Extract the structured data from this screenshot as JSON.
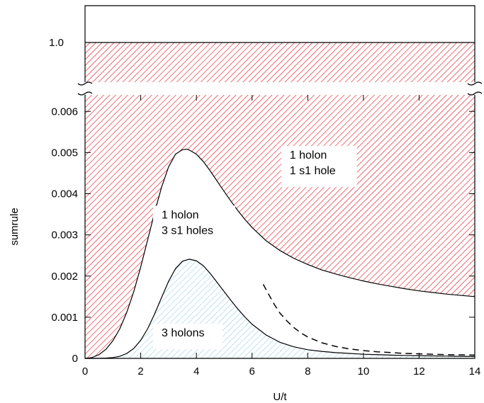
{
  "chart_data": {
    "type": "area",
    "title": "",
    "xlabel": "U/t",
    "ylabel": "sumrule",
    "xlim": [
      0,
      14
    ],
    "ylim": [
      0,
      0.0064
    ],
    "y_axis_break": {
      "lower_max": 0.0064,
      "upper_tick": 1.0,
      "upper_tick_label": "1.0"
    },
    "x_ticks": [
      0,
      2,
      4,
      6,
      8,
      10,
      12,
      14
    ],
    "x_tick_labels": [
      "0",
      "2",
      "4",
      "6",
      "8",
      "10",
      "12",
      "14"
    ],
    "y_ticks": [
      0,
      0.001,
      0.002,
      0.003,
      0.004,
      0.005,
      0.006
    ],
    "y_tick_labels": [
      "0",
      "0.001",
      "0.002",
      "0.003",
      "0.004",
      "0.005",
      "0.006"
    ],
    "grid": false,
    "fill_colors": {
      "one_holon_one_s1_hole": "#e8202a",
      "three_holons": "#9fd4e6"
    },
    "series": [
      {
        "x": [
          0,
          0.25,
          0.5,
          0.75,
          1,
          1.25,
          1.5,
          1.75,
          2,
          2.25,
          2.5,
          2.75,
          3,
          3.25,
          3.5,
          3.65,
          3.75,
          4,
          4.25,
          4.5,
          4.75,
          5,
          5.25,
          5.5,
          5.75,
          6,
          6.5,
          7,
          7.5,
          8,
          8.5,
          9,
          9.5,
          10,
          10.5,
          11,
          11.5,
          12,
          12.5,
          13,
          13.5,
          14
        ],
        "values": [
          0,
          2e-05,
          9e-05,
          0.00022,
          0.00043,
          0.00072,
          0.00112,
          0.00162,
          0.00222,
          0.00288,
          0.00355,
          0.00416,
          0.00465,
          0.00496,
          0.00507,
          0.00508,
          0.00506,
          0.00496,
          0.00478,
          0.00455,
          0.0043,
          0.00405,
          0.00381,
          0.00358,
          0.00337,
          0.00318,
          0.00286,
          0.00262,
          0.00243,
          0.00228,
          0.00215,
          0.00205,
          0.00196,
          0.00188,
          0.00181,
          0.00175,
          0.00169,
          0.00164,
          0.0016,
          0.00156,
          0.00153,
          0.0015
        ]
      },
      {
        "x": [
          0,
          0.25,
          0.5,
          0.75,
          1,
          1.25,
          1.5,
          1.75,
          2,
          2.25,
          2.5,
          2.75,
          3,
          3.25,
          3.5,
          3.75,
          4,
          4.25,
          4.5,
          4.75,
          5,
          5.25,
          5.5,
          5.75,
          6,
          6.5,
          7,
          7.5,
          8,
          8.5,
          9,
          9.5,
          10,
          10.5,
          11,
          11.5,
          12,
          12.5,
          13,
          13.5,
          14
        ],
        "values": [
          0,
          0,
          2e-06,
          6e-06,
          2e-05,
          5e-05,
          0.00012,
          0.00024,
          0.00044,
          0.00072,
          0.00108,
          0.00148,
          0.00187,
          0.00218,
          0.00236,
          0.00241,
          0.00237,
          0.00225,
          0.00206,
          0.00184,
          0.00162,
          0.0014,
          0.00119,
          0.001,
          0.00083,
          0.00057,
          0.00039,
          0.00028,
          0.00021,
          0.00017,
          0.00014,
          0.00012,
          0.0001,
          9e-05,
          8e-05,
          7e-05,
          6.5e-05,
          6e-05,
          5.5e-05,
          5e-05,
          4.5e-05
        ]
      },
      {
        "x": [
          6.4,
          6.6,
          6.8,
          7,
          7.25,
          7.5,
          7.75,
          8,
          8.5,
          9,
          9.5,
          10,
          10.5,
          11,
          11.5,
          12,
          12.5,
          13,
          13.5,
          14
        ],
        "values": [
          0.0018,
          0.00155,
          0.00131,
          0.0011,
          0.00091,
          0.00075,
          0.00062,
          0.00052,
          0.00038,
          0.00029,
          0.00023,
          0.00019,
          0.00016,
          0.00014,
          0.00012,
          0.00011,
          0.0001,
          9e-05,
          8.5e-05,
          8e-05
        ],
        "style": "dashed"
      }
    ],
    "annotations": [
      {
        "lines": [
          "1 holon",
          "1 s1 hole"
        ],
        "x": 7.35,
        "y": 0.00485
      },
      {
        "lines": [
          "1 holon",
          "3 s1 holes"
        ],
        "x": 2.75,
        "y": 0.0034
      },
      {
        "lines": [
          "3 holons"
        ],
        "x": 2.75,
        "y": 0.00053
      }
    ]
  }
}
